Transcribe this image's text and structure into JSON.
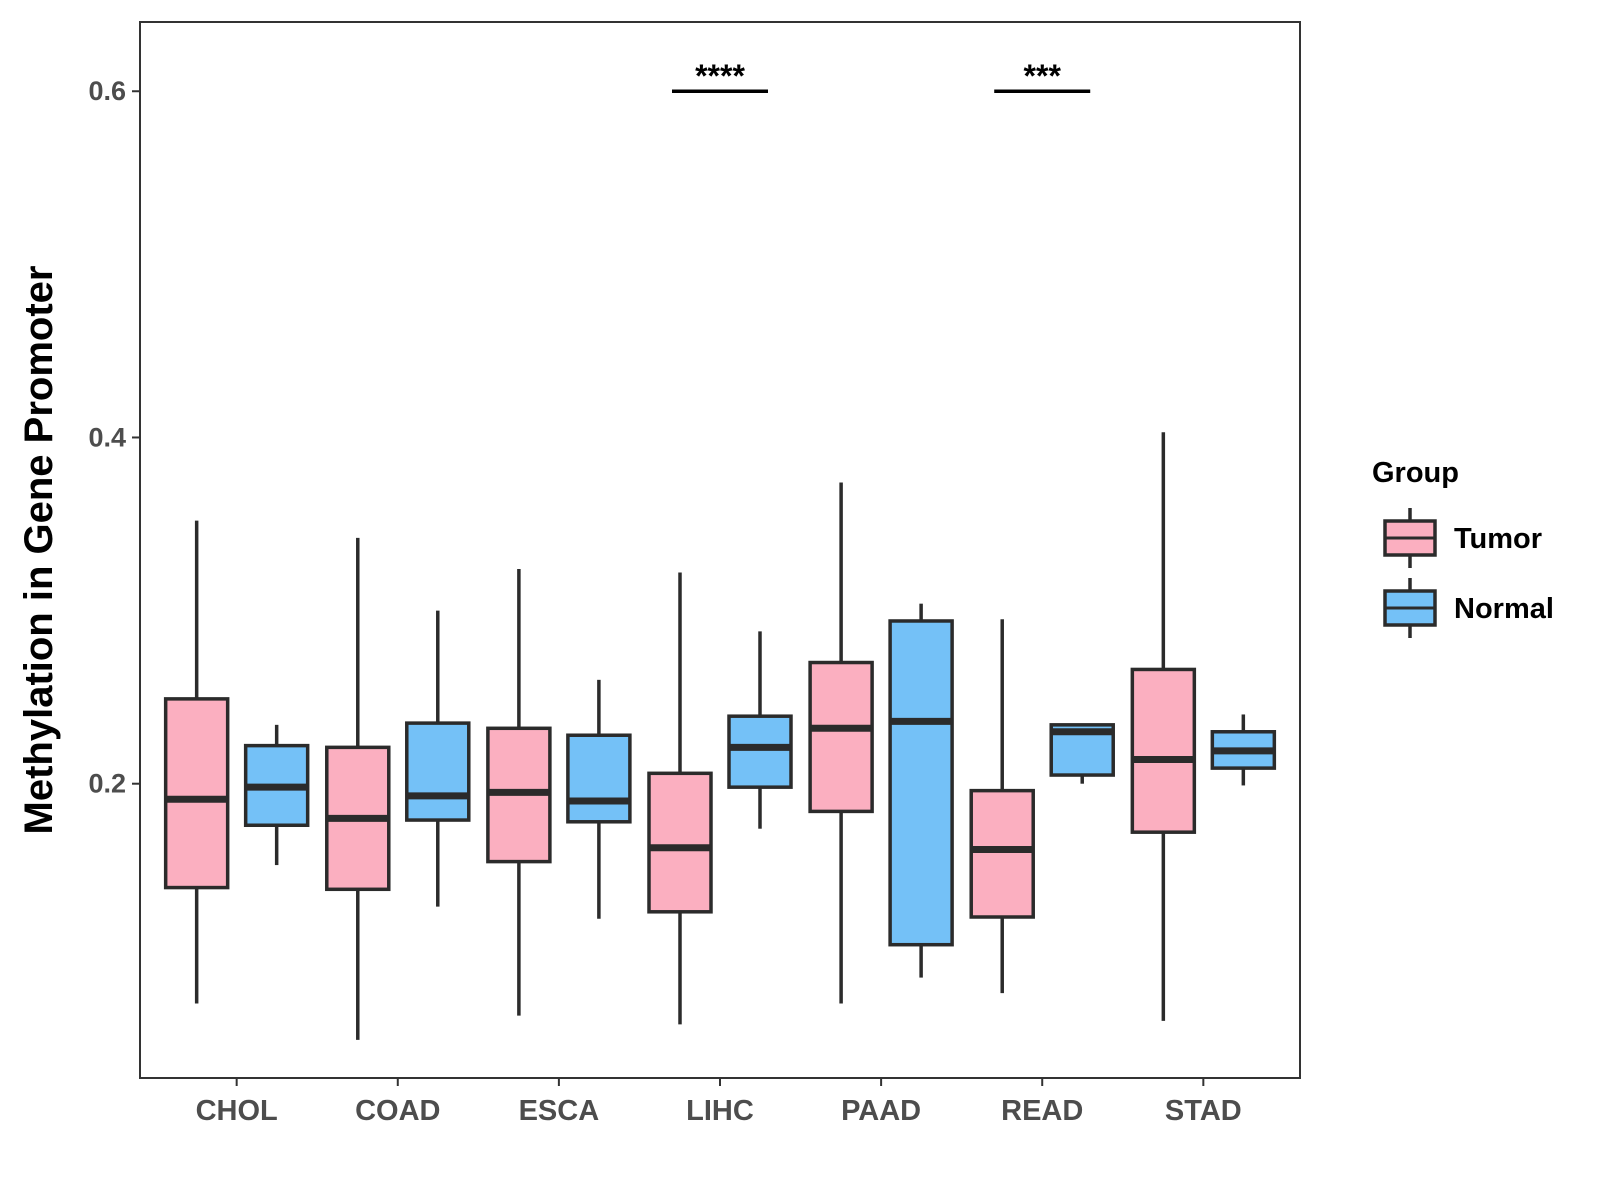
{
  "chart_data": {
    "type": "boxplot",
    "title": "",
    "xlabel": "",
    "ylabel": "Methylation in Gene Promoter",
    "ylim": [
      0.03,
      0.64
    ],
    "yticks": [
      0.2,
      0.4,
      0.6
    ],
    "ytick_labels": [
      "0.2",
      "0.4",
      "0.6"
    ],
    "grid": false,
    "categories": [
      "CHOL",
      "COAD",
      "ESCA",
      "LIHC",
      "PAAD",
      "READ",
      "STAD"
    ],
    "legend": {
      "title": "Group",
      "position": "right",
      "entries": [
        {
          "name": "Tumor",
          "color": "#FBAFC0"
        },
        {
          "name": "Normal",
          "color": "#74C1F7"
        }
      ]
    },
    "series": [
      {
        "name": "Tumor",
        "color": "#FBAFC0",
        "boxes": [
          {
            "category": "CHOL",
            "min": 0.073,
            "q1": 0.14,
            "median": 0.191,
            "q3": 0.249,
            "max": 0.352
          },
          {
            "category": "COAD",
            "min": 0.052,
            "q1": 0.139,
            "median": 0.18,
            "q3": 0.221,
            "max": 0.342
          },
          {
            "category": "ESCA",
            "min": 0.066,
            "q1": 0.155,
            "median": 0.195,
            "q3": 0.232,
            "max": 0.324
          },
          {
            "category": "LIHC",
            "min": 0.061,
            "q1": 0.126,
            "median": 0.163,
            "q3": 0.206,
            "max": 0.322
          },
          {
            "category": "PAAD",
            "min": 0.073,
            "q1": 0.184,
            "median": 0.232,
            "q3": 0.27,
            "max": 0.374
          },
          {
            "category": "READ",
            "min": 0.079,
            "q1": 0.123,
            "median": 0.162,
            "q3": 0.196,
            "max": 0.295
          },
          {
            "category": "STAD",
            "min": 0.063,
            "q1": 0.172,
            "median": 0.214,
            "q3": 0.266,
            "max": 0.403
          }
        ]
      },
      {
        "name": "Normal",
        "color": "#74C1F7",
        "boxes": [
          {
            "category": "CHOL",
            "min": 0.153,
            "q1": 0.176,
            "median": 0.198,
            "q3": 0.222,
            "max": 0.234
          },
          {
            "category": "COAD",
            "min": 0.129,
            "q1": 0.179,
            "median": 0.193,
            "q3": 0.235,
            "max": 0.3
          },
          {
            "category": "ESCA",
            "min": 0.122,
            "q1": 0.178,
            "median": 0.19,
            "q3": 0.228,
            "max": 0.26
          },
          {
            "category": "LIHC",
            "min": 0.174,
            "q1": 0.198,
            "median": 0.221,
            "q3": 0.239,
            "max": 0.288
          },
          {
            "category": "PAAD",
            "min": 0.088,
            "q1": 0.107,
            "median": 0.236,
            "q3": 0.294,
            "max": 0.304
          },
          {
            "category": "READ",
            "min": 0.2,
            "q1": 0.205,
            "median": 0.23,
            "q3": 0.234,
            "max": 0.234
          },
          {
            "category": "STAD",
            "min": 0.199,
            "q1": 0.209,
            "median": 0.219,
            "q3": 0.23,
            "max": 0.24
          }
        ]
      }
    ],
    "annotations": [
      {
        "category": "LIHC",
        "text": "****",
        "y": 0.6
      },
      {
        "category": "READ",
        "text": "***",
        "y": 0.6
      }
    ]
  }
}
